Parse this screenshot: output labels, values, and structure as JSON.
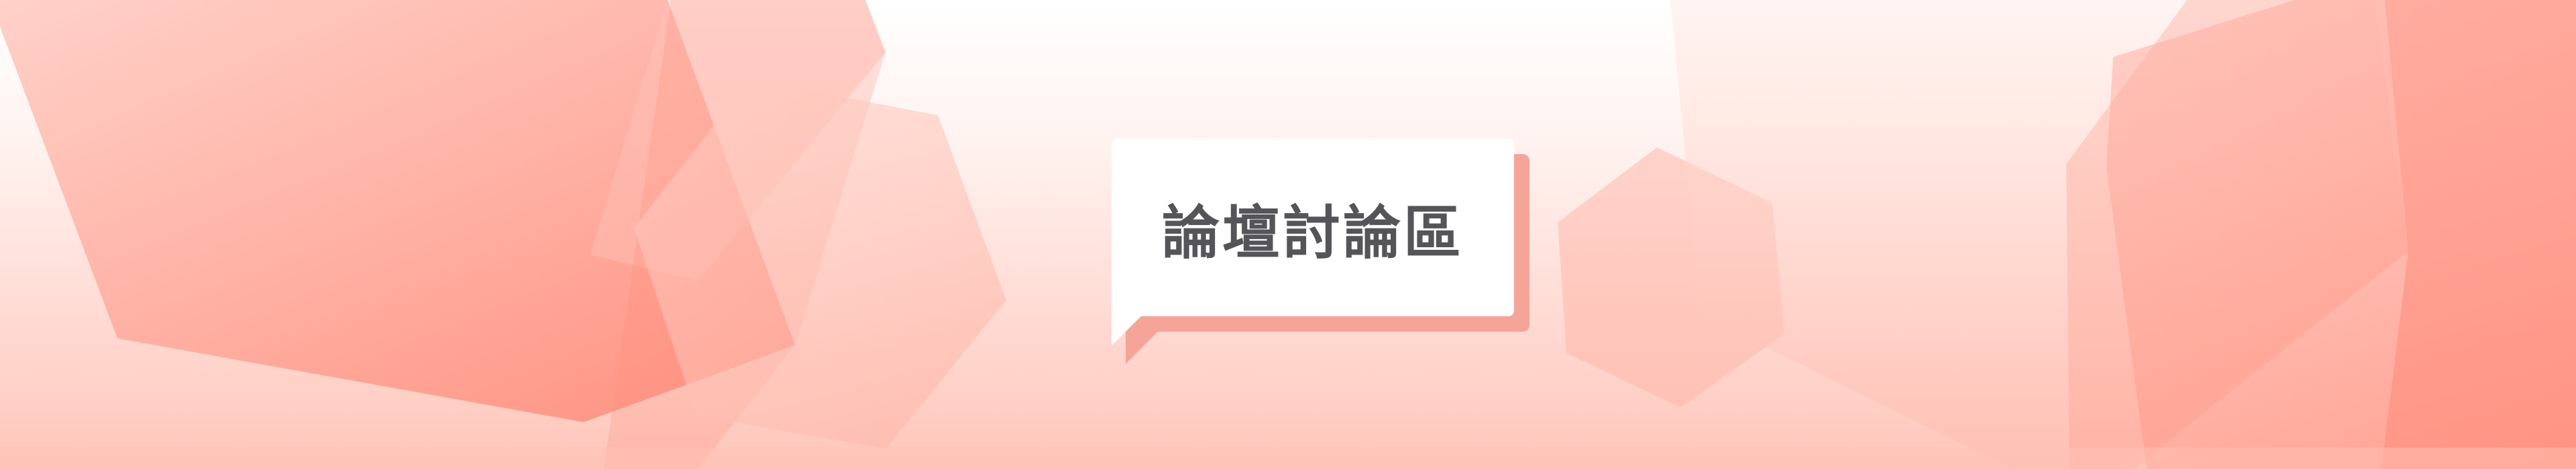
{
  "banner": {
    "title": "論壇討論區"
  },
  "colors": {
    "accent": "#ff8472",
    "shadow": "#f4a597",
    "text": "#555559"
  }
}
